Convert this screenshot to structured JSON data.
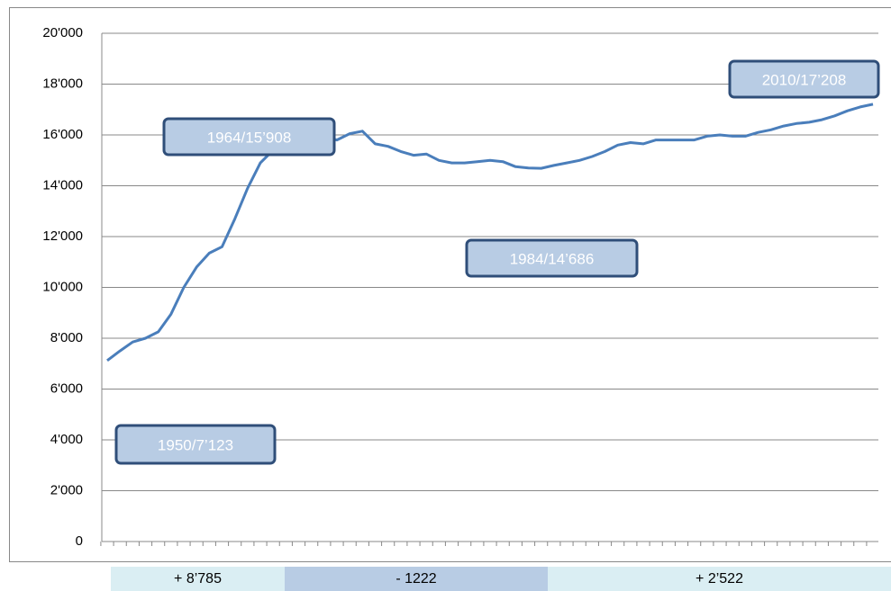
{
  "chart_data": {
    "type": "line",
    "ylim": [
      0,
      20000
    ],
    "yticks": [
      0,
      {
        "value": 2000,
        "label": "2'000"
      },
      {
        "value": 4000,
        "label": "4'000"
      },
      {
        "value": 6000,
        "label": "6'000"
      },
      {
        "value": 8000,
        "label": "8'000"
      },
      {
        "value": 10000,
        "label": "10'000"
      },
      {
        "value": 12000,
        "label": "12'000"
      },
      {
        "value": 14000,
        "label": "14'000"
      },
      {
        "value": 16000,
        "label": "16'000"
      },
      {
        "value": 18000,
        "label": "18'000"
      },
      {
        "value": 20000,
        "label": "20'000"
      }
    ],
    "grid": true,
    "color": "#4a7ebb",
    "categories": [
      null,
      null,
      null,
      null,
      null,
      null,
      null,
      null,
      null,
      null,
      null,
      null,
      null,
      null,
      null,
      null,
      null,
      null,
      null,
      null,
      null,
      null,
      null,
      null,
      null,
      null,
      null,
      null,
      null,
      null,
      null,
      null,
      null,
      null,
      null,
      null,
      null,
      null,
      null,
      null,
      null,
      null,
      null,
      null,
      null,
      null,
      null,
      null,
      null,
      null,
      null,
      null,
      null,
      null,
      null,
      null,
      null,
      null,
      null,
      null,
      null
    ],
    "values": [
      7123,
      7500,
      7850,
      8000,
      8250,
      8950,
      10000,
      10800,
      11350,
      11600,
      12700,
      13900,
      14900,
      15400,
      15908,
      15850,
      15800,
      15900,
      15800,
      16050,
      16150,
      15650,
      15550,
      15350,
      15200,
      15250,
      15000,
      14900,
      14900,
      14950,
      15000,
      14950,
      14750,
      14700,
      14686,
      14800,
      14900,
      15000,
      15150,
      15350,
      15600,
      15700,
      15650,
      15800,
      15800,
      15800,
      15800,
      15950,
      16000,
      15950,
      15950,
      16100,
      16200,
      16350,
      16450,
      16500,
      16600,
      16750,
      16950,
      17100,
      17208
    ],
    "annotations": [
      "1964/15’908",
      "1984/14’686",
      "1950/7’123",
      "2010/17’208"
    ],
    "bands": [
      "+ 8’785",
      "- 1222",
      "+ 2’522"
    ]
  }
}
